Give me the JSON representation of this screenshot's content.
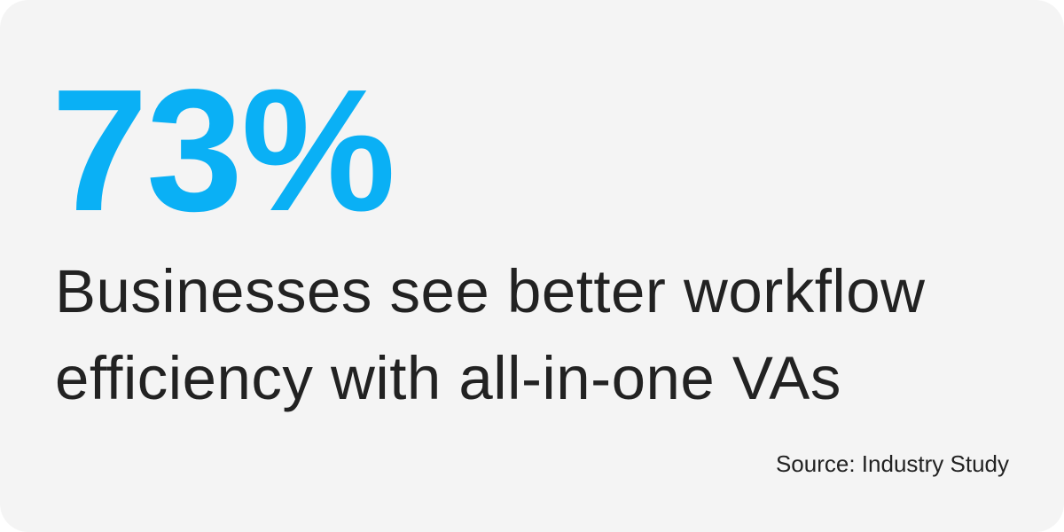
{
  "colors": {
    "accent": "#0ab0f5",
    "text": "#222222",
    "background": "#f4f4f4"
  },
  "stat": {
    "value": "73%"
  },
  "description": {
    "lines": [
      "Businesses see better workflow",
      "efficiency with all-in-one VAs"
    ]
  },
  "source": "Source: Industry Study"
}
